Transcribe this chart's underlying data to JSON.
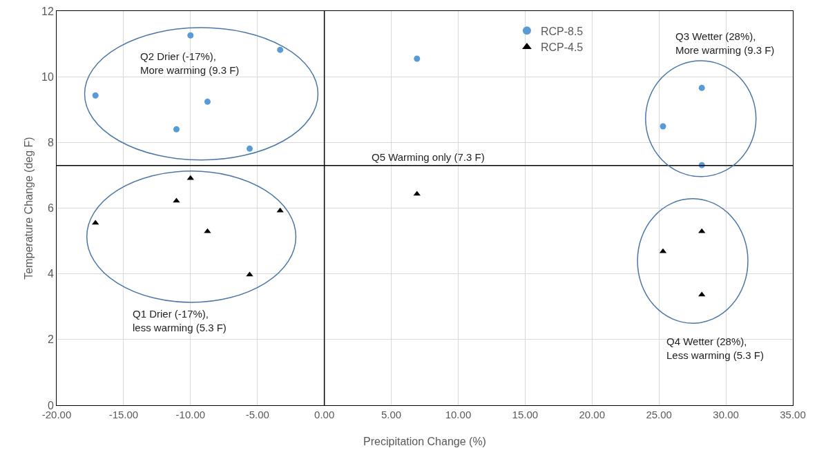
{
  "chart_data": {
    "type": "scatter",
    "xlabel": "Precipitation Change (%)",
    "ylabel": "Temperature Change (deg F)",
    "xlim": [
      -20,
      35
    ],
    "xticks": [
      {
        "value": -20,
        "label": "-20.00"
      },
      {
        "value": -15,
        "label": "-15.00"
      },
      {
        "value": -10,
        "label": "-10.00"
      },
      {
        "value": -5,
        "label": "-5.00"
      },
      {
        "value": 0,
        "label": "0.00"
      },
      {
        "value": 5,
        "label": "5.00"
      },
      {
        "value": 10,
        "label": "10.00"
      },
      {
        "value": 15,
        "label": "15.00"
      },
      {
        "value": 20,
        "label": "20.00"
      },
      {
        "value": 25,
        "label": "25.00"
      },
      {
        "value": 30,
        "label": "30.00"
      },
      {
        "value": 35,
        "label": "35.00"
      }
    ],
    "ylim": [
      0,
      12
    ],
    "yticks": [
      0,
      2,
      4,
      6,
      8,
      10,
      12
    ],
    "grid": true,
    "legend": "top",
    "series": [
      {
        "name": "RCP-8.5",
        "color": "#5b9bd5",
        "marker": "circle",
        "x": [
          -17.1,
          -10.0,
          -11.05,
          -8.73,
          -5.58,
          -3.3,
          6.92,
          28.2,
          25.3,
          28.2
        ],
        "values": [
          9.43,
          11.26,
          8.4,
          9.24,
          7.81,
          10.82,
          10.55,
          9.66,
          8.49,
          7.31
        ]
      },
      {
        "name": "RCP-4.5",
        "color": "#000000",
        "marker": "triangle",
        "x": [
          -17.1,
          -11.05,
          -10.0,
          -8.73,
          -5.58,
          -3.3,
          6.92,
          25.3,
          28.2,
          28.2
        ],
        "values": [
          5.55,
          6.22,
          6.91,
          5.29,
          3.97,
          5.92,
          6.43,
          4.68,
          5.29,
          3.36
        ]
      }
    ],
    "ref_lines": [
      {
        "axis": "x",
        "value": 0,
        "color": "#000000"
      },
      {
        "axis": "y",
        "value": 7.3,
        "color": "#000000",
        "label": "Q5 Warming only (7.3 F)"
      }
    ],
    "annotations": [
      "Q2 Drier (-17%),\nMore warming (9.3 F)",
      "Q3 Wetter (28%),\nMore warming (9.3 F)",
      "Q1 Drier (-17%),\nless warming (5.3 F)",
      "Q4 Wetter (28%),\nLess warming (5.3 F)"
    ]
  }
}
